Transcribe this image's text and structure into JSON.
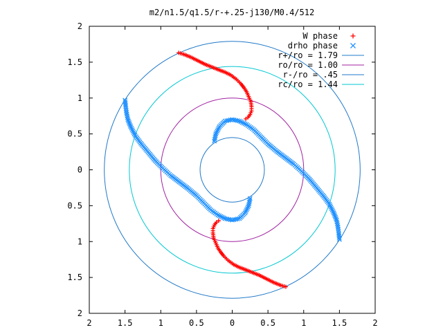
{
  "chart_data": {
    "type": "scatter",
    "title": "m2/n1.5/q1.5/r-+.25-j130/M0.4/512",
    "xlabel": "",
    "ylabel": "",
    "xlim": [
      -2,
      2
    ],
    "ylim": [
      -2,
      2
    ],
    "x_ticks": [
      "2",
      "1.5",
      "1",
      "0.5",
      "0",
      "0.5",
      "1",
      "1.5",
      "2"
    ],
    "y_ticks": [
      "2",
      "1.5",
      "1",
      "0.5",
      "0",
      "0.5",
      "1",
      "1.5",
      "2"
    ],
    "grid": false,
    "legend_position": "top-right",
    "series": [
      {
        "name": "W phase",
        "marker": "plus",
        "color": "#ff0000",
        "points": [
          [
            -0.75,
            1.63
          ],
          [
            -0.68,
            1.61
          ],
          [
            -0.58,
            1.57
          ],
          [
            -0.48,
            1.52
          ],
          [
            -0.38,
            1.47
          ],
          [
            -0.28,
            1.43
          ],
          [
            -0.18,
            1.39
          ],
          [
            -0.1,
            1.36
          ],
          [
            -0.02,
            1.32
          ],
          [
            0.06,
            1.26
          ],
          [
            0.12,
            1.2
          ],
          [
            0.16,
            1.15
          ],
          [
            0.2,
            1.09
          ],
          [
            0.23,
            1.02
          ],
          [
            0.26,
            0.95
          ],
          [
            0.27,
            0.88
          ],
          [
            0.27,
            0.82
          ],
          [
            0.25,
            0.77
          ],
          [
            0.22,
            0.73
          ],
          [
            0.19,
            0.71
          ],
          [
            0.75,
            -1.63
          ],
          [
            0.68,
            -1.61
          ],
          [
            0.58,
            -1.57
          ],
          [
            0.48,
            -1.52
          ],
          [
            0.38,
            -1.47
          ],
          [
            0.28,
            -1.43
          ],
          [
            0.18,
            -1.39
          ],
          [
            0.1,
            -1.36
          ],
          [
            0.02,
            -1.32
          ],
          [
            -0.06,
            -1.26
          ],
          [
            -0.12,
            -1.2
          ],
          [
            -0.16,
            -1.15
          ],
          [
            -0.2,
            -1.09
          ],
          [
            -0.23,
            -1.02
          ],
          [
            -0.26,
            -0.95
          ],
          [
            -0.27,
            -0.88
          ],
          [
            -0.27,
            -0.82
          ],
          [
            -0.25,
            -0.77
          ],
          [
            -0.22,
            -0.73
          ],
          [
            -0.19,
            -0.71
          ]
        ]
      },
      {
        "name": "drho phase",
        "marker": "cross",
        "color": "#1e90ff",
        "points": [
          [
            1.5,
            -0.97
          ],
          [
            1.49,
            -0.88
          ],
          [
            1.48,
            -0.8
          ],
          [
            1.46,
            -0.7
          ],
          [
            1.42,
            -0.6
          ],
          [
            1.36,
            -0.48
          ],
          [
            1.28,
            -0.37
          ],
          [
            1.18,
            -0.25
          ],
          [
            1.08,
            -0.13
          ],
          [
            0.97,
            -0.02
          ],
          [
            0.86,
            0.08
          ],
          [
            0.74,
            0.17
          ],
          [
            0.62,
            0.26
          ],
          [
            0.5,
            0.36
          ],
          [
            0.4,
            0.46
          ],
          [
            0.3,
            0.56
          ],
          [
            0.2,
            0.63
          ],
          [
            0.1,
            0.68
          ],
          [
            0.0,
            0.7
          ],
          [
            -0.1,
            0.68
          ],
          [
            -0.18,
            0.6
          ],
          [
            -0.23,
            0.5
          ],
          [
            -0.25,
            0.4
          ],
          [
            -1.5,
            0.97
          ],
          [
            -1.49,
            0.88
          ],
          [
            -1.48,
            0.8
          ],
          [
            -1.46,
            0.7
          ],
          [
            -1.42,
            0.6
          ],
          [
            -1.36,
            0.48
          ],
          [
            -1.28,
            0.37
          ],
          [
            -1.18,
            0.25
          ],
          [
            -1.08,
            0.13
          ],
          [
            -0.97,
            0.02
          ],
          [
            -0.86,
            -0.08
          ],
          [
            -0.74,
            -0.17
          ],
          [
            -0.62,
            -0.26
          ],
          [
            -0.5,
            -0.36
          ],
          [
            -0.4,
            -0.46
          ],
          [
            -0.3,
            -0.56
          ],
          [
            -0.2,
            -0.63
          ],
          [
            -0.1,
            -0.68
          ],
          [
            0.0,
            -0.7
          ],
          [
            0.1,
            -0.68
          ],
          [
            0.18,
            -0.6
          ],
          [
            0.23,
            -0.5
          ],
          [
            0.25,
            -0.4
          ]
        ]
      }
    ],
    "circles": [
      {
        "name": "r+/ro = 1.79",
        "label": "r+/ro = 1.79",
        "radius": 1.79,
        "color": "#1e78c8"
      },
      {
        "name": "ro/ro = 1.00",
        "label": "ro/ro = 1.00",
        "radius": 1.0,
        "color": "#a020a0"
      },
      {
        "name": "r-/ro = .45",
        "label": "r-/ro = .45",
        "radius": 0.45,
        "color": "#1e78c8"
      },
      {
        "name": "rc/ro = 1.44",
        "label": "rc/ro = 1.44",
        "radius": 1.44,
        "color": "#00c8d2"
      }
    ],
    "legend": [
      {
        "label": "W phase",
        "marker": "plus",
        "color": "#ff0000"
      },
      {
        "label": "drho phase",
        "marker": "cross",
        "color": "#1e90ff"
      },
      {
        "label": "r+/ro = 1.79",
        "marker": "line",
        "color": "#1e78c8"
      },
      {
        "label": "ro/ro = 1.00",
        "marker": "line",
        "color": "#a020a0"
      },
      {
        "label": "r-/ro = .45",
        "marker": "line",
        "color": "#1e78c8"
      },
      {
        "label": "rc/ro = 1.44",
        "marker": "line",
        "color": "#00c8d2"
      }
    ]
  }
}
